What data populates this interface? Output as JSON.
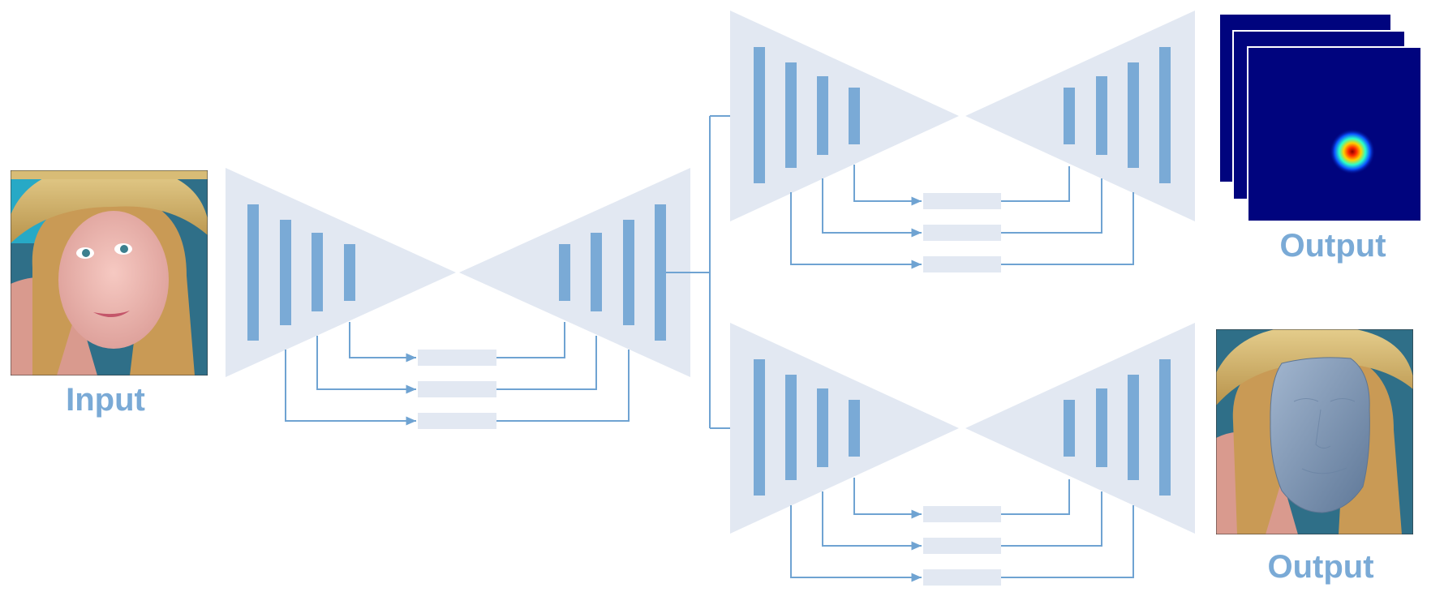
{
  "labels": {
    "input": "Input",
    "output_heatmap": "Output",
    "output_face": "Output"
  },
  "colors": {
    "hourglass_fill": "#e2e8f2",
    "bar_fill": "#7aaad6",
    "connector": "#6fa3d2",
    "skip_block": "#e2e8f2",
    "label": "#7aaad6",
    "heatmap_background": "#00047e",
    "face_mesh": "#7f98b7"
  },
  "icons": {
    "input_image": "face-photo-icon",
    "heatmap": "landmark-heatmap-icon",
    "mesh_output": "3d-face-mesh-icon"
  }
}
